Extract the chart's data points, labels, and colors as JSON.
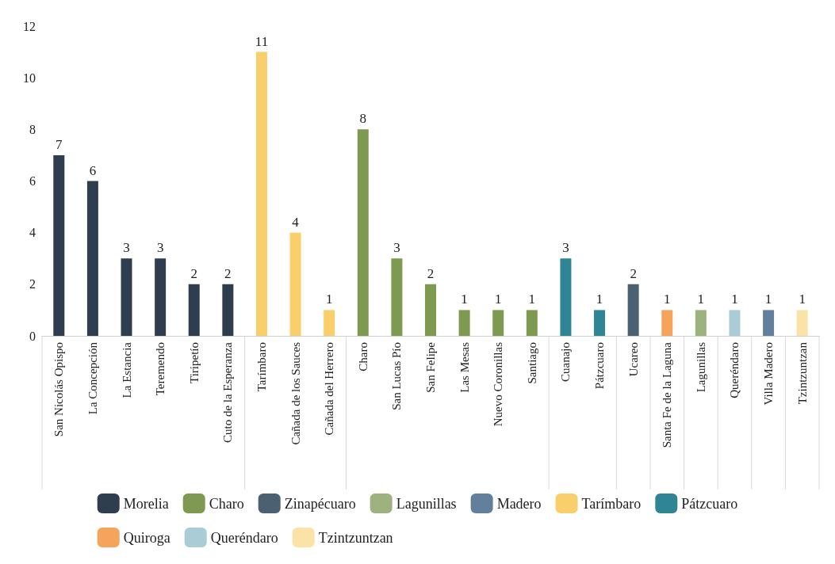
{
  "chart_data": {
    "type": "bar",
    "categories": [
      "San Nicolás Opispo",
      "La Concepción",
      "La Estancia",
      "Teremendo",
      "Tiripetío",
      "Cuto de la Esperanza",
      "Tarímbaro",
      "Cañada de los Sauces",
      "Cañada del Herrero",
      "Charo",
      "San Lucas Pío",
      "San Felipe",
      "Las Mesas",
      "Nuevo Coronillas",
      "Santiago",
      "Cuanajo",
      "Pátzcuaro",
      "Ucareo",
      "Santa Fe de la Laguna",
      "Lagunillas",
      "Queréndaro",
      "Villa Madero",
      "Tzintzuntzan"
    ],
    "series": [
      {
        "name": "Morelia",
        "color": "#2f3e4f",
        "values": [
          7,
          6,
          3,
          3,
          2,
          2,
          null,
          null,
          null,
          null,
          null,
          null,
          null,
          null,
          null,
          null,
          null,
          null,
          null,
          null,
          null,
          null,
          null
        ]
      },
      {
        "name": "Tarímbaro",
        "color": "#f8cf6a",
        "values": [
          null,
          null,
          null,
          null,
          null,
          null,
          11,
          4,
          1,
          null,
          null,
          null,
          null,
          null,
          null,
          null,
          null,
          null,
          null,
          null,
          null,
          null,
          null
        ]
      },
      {
        "name": "Charo",
        "color": "#7d9a50",
        "values": [
          null,
          null,
          null,
          null,
          null,
          null,
          null,
          null,
          null,
          8,
          3,
          2,
          1,
          1,
          1,
          null,
          null,
          null,
          null,
          null,
          null,
          null,
          null
        ]
      },
      {
        "name": "Pátzcuaro",
        "color": "#2f8593",
        "values": [
          null,
          null,
          null,
          null,
          null,
          null,
          null,
          null,
          null,
          null,
          null,
          null,
          null,
          null,
          null,
          3,
          1,
          null,
          null,
          null,
          null,
          null,
          null
        ]
      },
      {
        "name": "Zinapécuaro",
        "color": "#4b6172",
        "values": [
          null,
          null,
          null,
          null,
          null,
          null,
          null,
          null,
          null,
          null,
          null,
          null,
          null,
          null,
          null,
          null,
          null,
          2,
          null,
          null,
          null,
          null,
          null
        ]
      },
      {
        "name": "Quiroga",
        "color": "#f6a35c",
        "values": [
          null,
          null,
          null,
          null,
          null,
          null,
          null,
          null,
          null,
          null,
          null,
          null,
          null,
          null,
          null,
          null,
          null,
          null,
          1,
          null,
          null,
          null,
          null
        ]
      },
      {
        "name": "Lagunillas",
        "color": "#9db27f",
        "values": [
          null,
          null,
          null,
          null,
          null,
          null,
          null,
          null,
          null,
          null,
          null,
          null,
          null,
          null,
          null,
          null,
          null,
          null,
          null,
          1,
          null,
          null,
          null
        ]
      },
      {
        "name": "Queréndaro",
        "color": "#a9ccd6",
        "values": [
          null,
          null,
          null,
          null,
          null,
          null,
          null,
          null,
          null,
          null,
          null,
          null,
          null,
          null,
          null,
          null,
          null,
          null,
          null,
          null,
          1,
          null,
          null
        ]
      },
      {
        "name": "Madero",
        "color": "#62809c",
        "values": [
          null,
          null,
          null,
          null,
          null,
          null,
          null,
          null,
          null,
          null,
          null,
          null,
          null,
          null,
          null,
          null,
          null,
          null,
          null,
          null,
          null,
          1,
          null
        ]
      },
      {
        "name": "Tzintzuntzan",
        "color": "#fbe2a6",
        "values": [
          null,
          null,
          null,
          null,
          null,
          null,
          null,
          null,
          null,
          null,
          null,
          null,
          null,
          null,
          null,
          null,
          null,
          null,
          null,
          null,
          null,
          null,
          1
        ]
      }
    ],
    "ylim": [
      0,
      12
    ],
    "yticks": [
      0,
      2,
      4,
      6,
      8,
      10,
      12
    ],
    "data_labels": true,
    "grid": false,
    "legend": "bottom"
  }
}
